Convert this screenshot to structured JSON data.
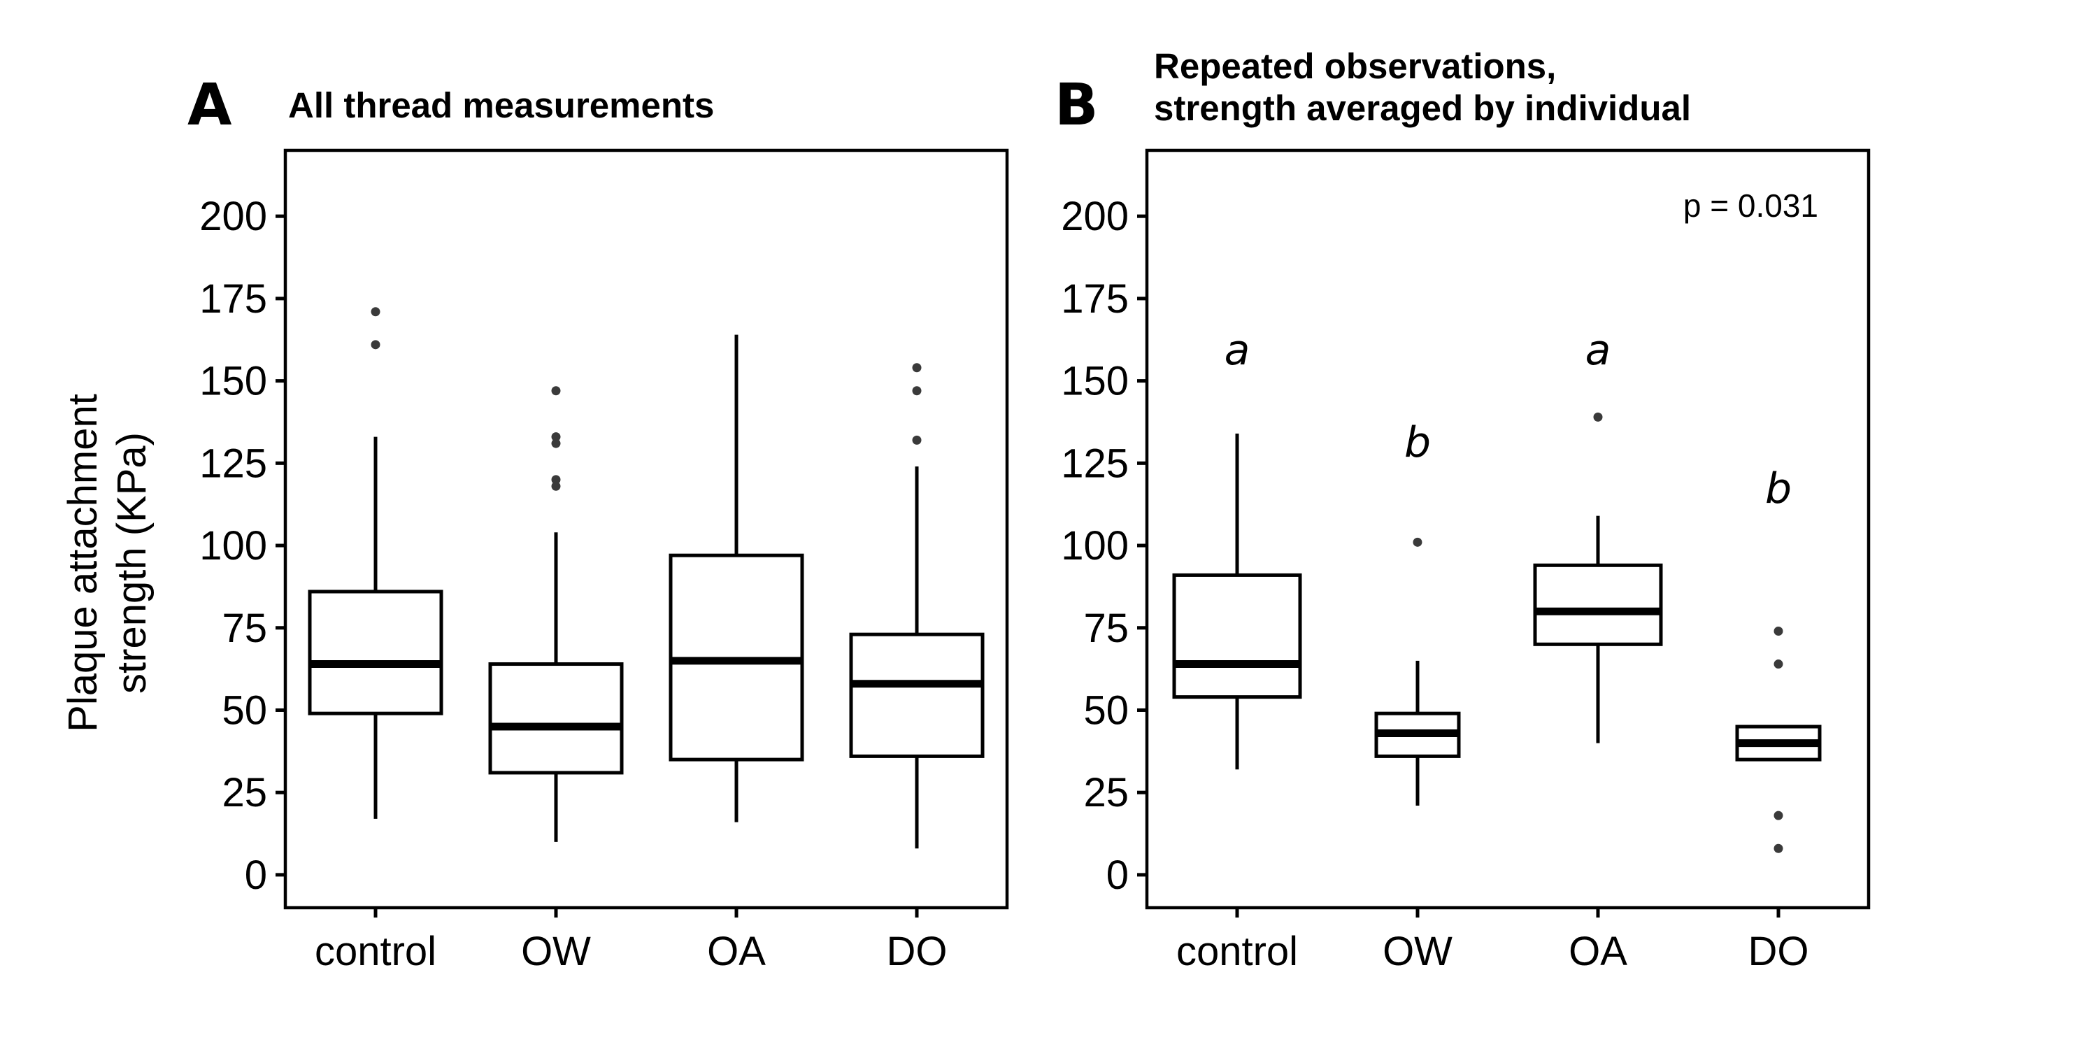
{
  "ylabel_line1": "Plaque attachment",
  "ylabel_line2": "strength (KPa)",
  "chart_data": [
    {
      "type": "box",
      "panel": "A",
      "title": "All thread measurements",
      "xlabel": "",
      "ylabel": "Plaque attachment strength (KPa)",
      "ylim": [
        -10,
        220
      ],
      "yticks": [
        0,
        25,
        50,
        75,
        100,
        125,
        150,
        175,
        200
      ],
      "categories": [
        "control",
        "OW",
        "OA",
        "DO"
      ],
      "boxes": [
        {
          "category": "control",
          "whisker_low": 17,
          "q1": 49,
          "median": 64,
          "q3": 86,
          "whisker_high": 133,
          "outliers": [
            161,
            171
          ]
        },
        {
          "category": "OW",
          "whisker_low": 10,
          "q1": 31,
          "median": 45,
          "q3": 64,
          "whisker_high": 104,
          "outliers": [
            118,
            120,
            131,
            133,
            147
          ]
        },
        {
          "category": "OA",
          "whisker_low": 16,
          "q1": 35,
          "median": 65,
          "q3": 97,
          "whisker_high": 164,
          "outliers": []
        },
        {
          "category": "DO",
          "whisker_low": 8,
          "q1": 36,
          "median": 58,
          "q3": 73,
          "whisker_high": 124,
          "outliers": [
            132,
            147,
            154
          ]
        }
      ],
      "annotations": []
    },
    {
      "type": "box",
      "panel": "B",
      "title": [
        "Repeated observations,",
        "strength averaged by individual"
      ],
      "xlabel": "",
      "ylabel": "",
      "ylim": [
        -10,
        220
      ],
      "yticks": [
        0,
        25,
        50,
        75,
        100,
        125,
        150,
        175,
        200
      ],
      "categories": [
        "control",
        "OW",
        "OA",
        "DO"
      ],
      "boxes": [
        {
          "category": "control",
          "whisker_low": 32,
          "q1": 54,
          "median": 64,
          "q3": 91,
          "whisker_high": 134,
          "outliers": [],
          "letter": "a",
          "letter_y": 155
        },
        {
          "category": "OW",
          "whisker_low": 21,
          "q1": 36,
          "median": 43,
          "q3": 49,
          "whisker_high": 65,
          "outliers": [
            101
          ],
          "letter": "b",
          "letter_y": 127
        },
        {
          "category": "OA",
          "whisker_low": 40,
          "q1": 70,
          "median": 80,
          "q3": 94,
          "whisker_high": 109,
          "outliers": [
            139
          ],
          "letter": "a",
          "letter_y": 155
        },
        {
          "category": "DO",
          "whisker_low": 35,
          "q1": 35,
          "median": 40,
          "q3": 45,
          "whisker_high": 45,
          "outliers": [
            8,
            18,
            64,
            74
          ],
          "letter": "b",
          "letter_y": 113
        }
      ],
      "annotations": [
        {
          "text": "p = 0.031"
        }
      ]
    }
  ]
}
